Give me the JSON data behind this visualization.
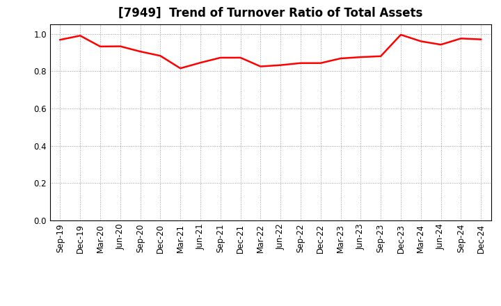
{
  "title": "[7949]  Trend of Turnover Ratio of Total Assets",
  "labels": [
    "Sep-19",
    "Dec-19",
    "Mar-20",
    "Jun-20",
    "Sep-20",
    "Dec-20",
    "Mar-21",
    "Jun-21",
    "Sep-21",
    "Dec-21",
    "Mar-22",
    "Jun-22",
    "Sep-22",
    "Dec-22",
    "Mar-23",
    "Jun-23",
    "Sep-23",
    "Dec-23",
    "Mar-24",
    "Jun-24",
    "Sep-24",
    "Dec-24"
  ],
  "values": [
    0.968,
    0.99,
    0.932,
    0.933,
    0.905,
    0.882,
    0.815,
    0.845,
    0.872,
    0.872,
    0.825,
    0.832,
    0.843,
    0.843,
    0.868,
    0.875,
    0.88,
    0.995,
    0.96,
    0.942,
    0.975,
    0.97
  ],
  "line_color": "#FF0000",
  "line_width": 1.8,
  "ylim": [
    0.0,
    1.05
  ],
  "yticks": [
    0.0,
    0.2,
    0.4,
    0.6,
    0.8,
    1.0
  ],
  "background_color": "#FFFFFF",
  "grid_color": "#999999",
  "title_fontsize": 12,
  "tick_fontsize": 8.5
}
